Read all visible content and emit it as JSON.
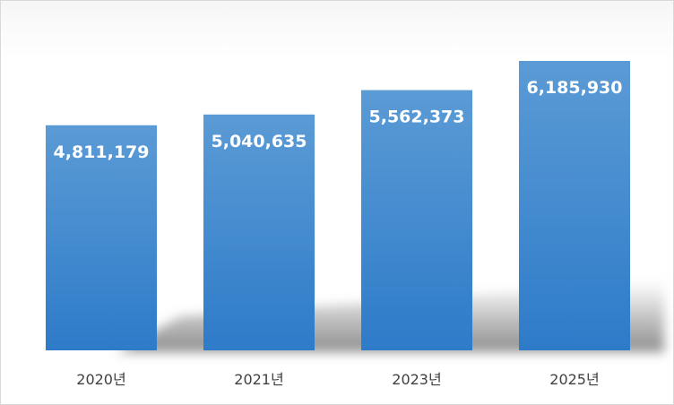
{
  "chart_data": {
    "type": "bar",
    "categories": [
      "2020년",
      "2021년",
      "2023년",
      "2025년"
    ],
    "values": [
      4811179,
      5040635,
      5562373,
      6185930
    ],
    "value_labels": [
      "4,811,179",
      "5,040,635",
      "5,562,373",
      "6,185,930"
    ],
    "title": "",
    "xlabel": "",
    "ylabel": "",
    "ylim": [
      0,
      7000000
    ],
    "grid": false,
    "legend": "none",
    "colors": {
      "bar_top": "#5b9bd5",
      "bar_bottom": "#2e7bc9",
      "label": "#ffffff",
      "axis_text": "#404040"
    }
  }
}
